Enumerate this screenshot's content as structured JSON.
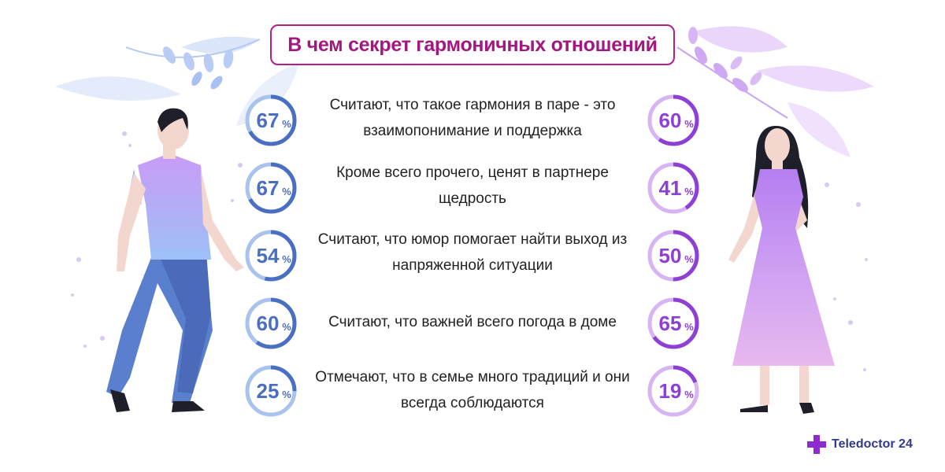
{
  "title": "В чем секрет гармоничных отношений",
  "rows": [
    {
      "text": "Считают, что такое гармония в паре - это взаимопонимание и поддержка",
      "men": 67,
      "women": 60
    },
    {
      "text": "Кроме всего прочего, ценят в партнере щедрость",
      "men": 67,
      "women": 41
    },
    {
      "text": "Считают, что юмор помогает найти выход из напряженной ситуации",
      "men": 54,
      "women": 50
    },
    {
      "text": "Считают, что важней всего погода в доме",
      "men": 60,
      "women": 65
    },
    {
      "text": "Отмечают, что в семье много традиций и они всегда соблюдаются",
      "men": 25,
      "women": 19
    }
  ],
  "percent_sign": "%",
  "brand": "Teledoctor 24",
  "colors": {
    "title": "#a3187f",
    "men_ring": "#4a6fc2",
    "men_ring_light": "#a9c3ee",
    "women_ring": "#8e3fd6",
    "women_ring_light": "#d7b5f3",
    "logo": "#8e2bd0"
  }
}
